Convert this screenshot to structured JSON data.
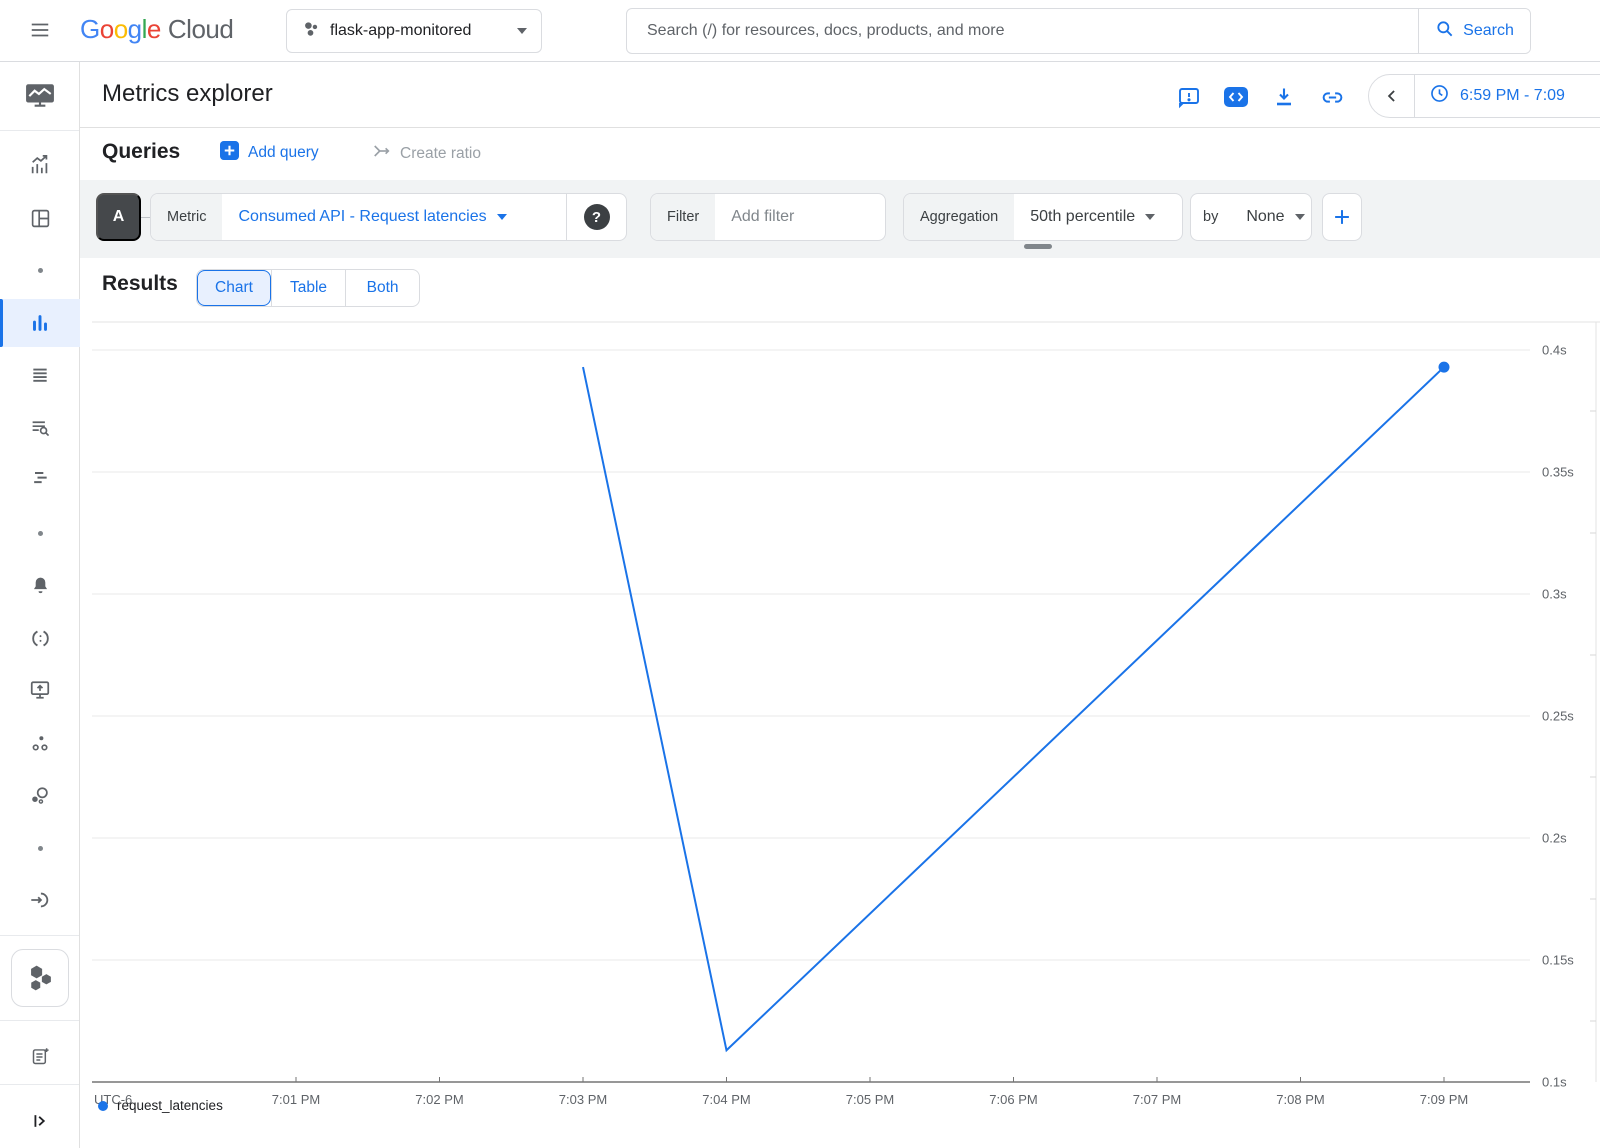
{
  "top_bar": {
    "logo": {
      "letters": [
        {
          "ch": "G",
          "color": "#4285F4"
        },
        {
          "ch": "o",
          "color": "#EA4335"
        },
        {
          "ch": "o",
          "color": "#FBBC05"
        },
        {
          "ch": "g",
          "color": "#4285F4"
        },
        {
          "ch": "l",
          "color": "#34A853"
        },
        {
          "ch": "e",
          "color": "#EA4335"
        }
      ],
      "cloud": "Cloud"
    },
    "project_name": "flask-app-monitored",
    "search_placeholder": "Search (/) for resources, docs, products, and more",
    "search_button_label": "Search"
  },
  "header": {
    "title": "Metrics explorer",
    "time_range_label": "6:59 PM - 7:09"
  },
  "queries": {
    "heading": "Queries",
    "add_query_label": "Add query",
    "create_ratio_label": "Create ratio"
  },
  "query_builder": {
    "query_letter": "A",
    "metric_label": "Metric",
    "metric_value": "Consumed API - Request latencies",
    "help_glyph": "?",
    "filter_label": "Filter",
    "filter_placeholder": "Add filter",
    "aggregation_label": "Aggregation",
    "aggregation_value": "50th percentile",
    "by_label": "by",
    "group_by_value": "None"
  },
  "results": {
    "heading": "Results",
    "tabs": [
      {
        "label": "Chart",
        "selected": true
      },
      {
        "label": "Table",
        "selected": false
      },
      {
        "label": "Both",
        "selected": false
      }
    ]
  },
  "chart_data": {
    "type": "line",
    "x_axis_note": "UTC-6",
    "x_ticks": [
      "7:01 PM",
      "7:02 PM",
      "7:03 PM",
      "7:04 PM",
      "7:05 PM",
      "7:06 PM",
      "7:07 PM",
      "7:08 PM",
      "7:09 PM"
    ],
    "y_ticks": [
      {
        "v": 0.1,
        "label": "0.1s"
      },
      {
        "v": 0.15,
        "label": "0.15s"
      },
      {
        "v": 0.2,
        "label": "0.2s"
      },
      {
        "v": 0.25,
        "label": "0.25s"
      },
      {
        "v": 0.3,
        "label": "0.3s"
      },
      {
        "v": 0.35,
        "label": "0.35s"
      },
      {
        "v": 0.4,
        "label": "0.4s"
      }
    ],
    "y_min": 0.1,
    "y_max": 0.4,
    "unit": "s",
    "grid": true,
    "legend_position": "bottom-left",
    "series": [
      {
        "name": "request_latencies",
        "color": "#1a73e8",
        "points": [
          {
            "t": "7:03 PM",
            "v": 0.393
          },
          {
            "t": "7:04 PM",
            "v": 0.113
          },
          {
            "t": "7:09 PM",
            "v": 0.393
          }
        ],
        "end_marker": true
      }
    ]
  },
  "colors": {
    "accent_blue": "#1a73e8",
    "selected_bg": "#e8f0fe",
    "border": "#dadce0",
    "builder_bg": "#f1f3f4",
    "text_dark": "#202124",
    "text_gray": "#5f6368"
  }
}
